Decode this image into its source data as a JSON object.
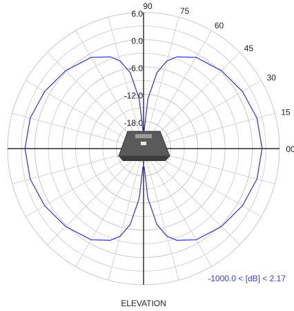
{
  "chart_data": {
    "type": "polar",
    "axis_label": "ELEVATION",
    "annotation": "-1000.0 < [dB] < 2.17",
    "rlim": [
      -24,
      6
    ],
    "rticks": [
      {
        "value": 6,
        "label": "6.0"
      },
      {
        "value": 0,
        "label": "0.0"
      },
      {
        "value": -6,
        "label": "-6.0"
      },
      {
        "value": -12,
        "label": "-12.0"
      },
      {
        "value": -18,
        "label": "-18.0"
      }
    ],
    "minor_rticks": [
      3,
      -3,
      -9,
      -15,
      -21
    ],
    "angle_ticks": [
      {
        "value": 0,
        "label": "00"
      },
      15,
      30,
      45,
      60,
      75,
      90
    ],
    "spoke_step": 15,
    "series": [
      {
        "color": "#3a3af0",
        "angles": [
          0,
          15,
          30,
          45,
          60,
          70,
          75,
          80,
          85,
          88,
          92,
          95,
          100,
          105,
          110,
          120,
          135,
          150,
          165,
          180,
          195,
          210,
          225,
          240,
          250,
          255,
          260,
          265,
          268,
          272,
          275,
          280,
          285,
          290,
          300,
          315,
          330,
          345,
          360
        ],
        "values": [
          2.17,
          1.9,
          1.2,
          0.3,
          -0.8,
          -2.5,
          -4,
          -7,
          -13,
          -20,
          -20,
          -13,
          -7,
          -4,
          -2.5,
          -0.8,
          0.3,
          1.2,
          1.9,
          2.17,
          1.9,
          1.2,
          0.3,
          -0.8,
          -2.5,
          -4,
          -7,
          -13,
          -20,
          -20,
          -13,
          -7,
          -4,
          -2.5,
          -0.8,
          0.3,
          1.2,
          1.9,
          2.17
        ]
      }
    ]
  }
}
